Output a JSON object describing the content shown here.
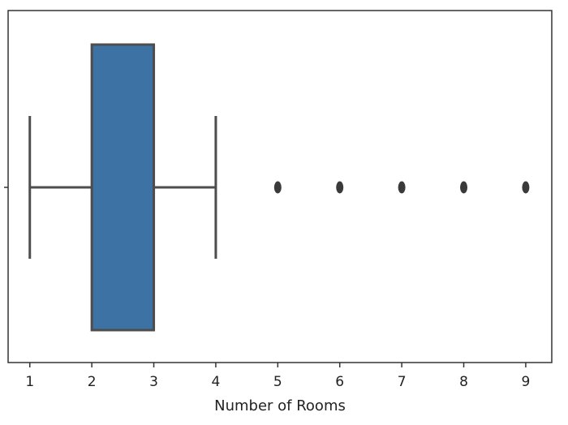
{
  "chart_data": {
    "type": "boxplot",
    "orientation": "horizontal",
    "title": "",
    "xlabel": "Number of Rooms",
    "ylabel": "",
    "xlim": [
      0.65,
      9.42
    ],
    "xticks": [
      1,
      2,
      3,
      4,
      5,
      6,
      7,
      8,
      9
    ],
    "xtick_labels": [
      "1",
      "2",
      "3",
      "4",
      "5",
      "6",
      "7",
      "8",
      "9"
    ],
    "grid": false,
    "box": {
      "whisker_low": 1,
      "q1": 2,
      "median": 3,
      "q3": 3,
      "whisker_high": 4,
      "outliers": [
        5,
        6,
        7,
        8,
        9
      ]
    },
    "colors": {
      "box_fill": "#3d72a4",
      "lines": "#4d4d4d",
      "outliers": "#3a3a3a",
      "axes": "#333333"
    }
  }
}
